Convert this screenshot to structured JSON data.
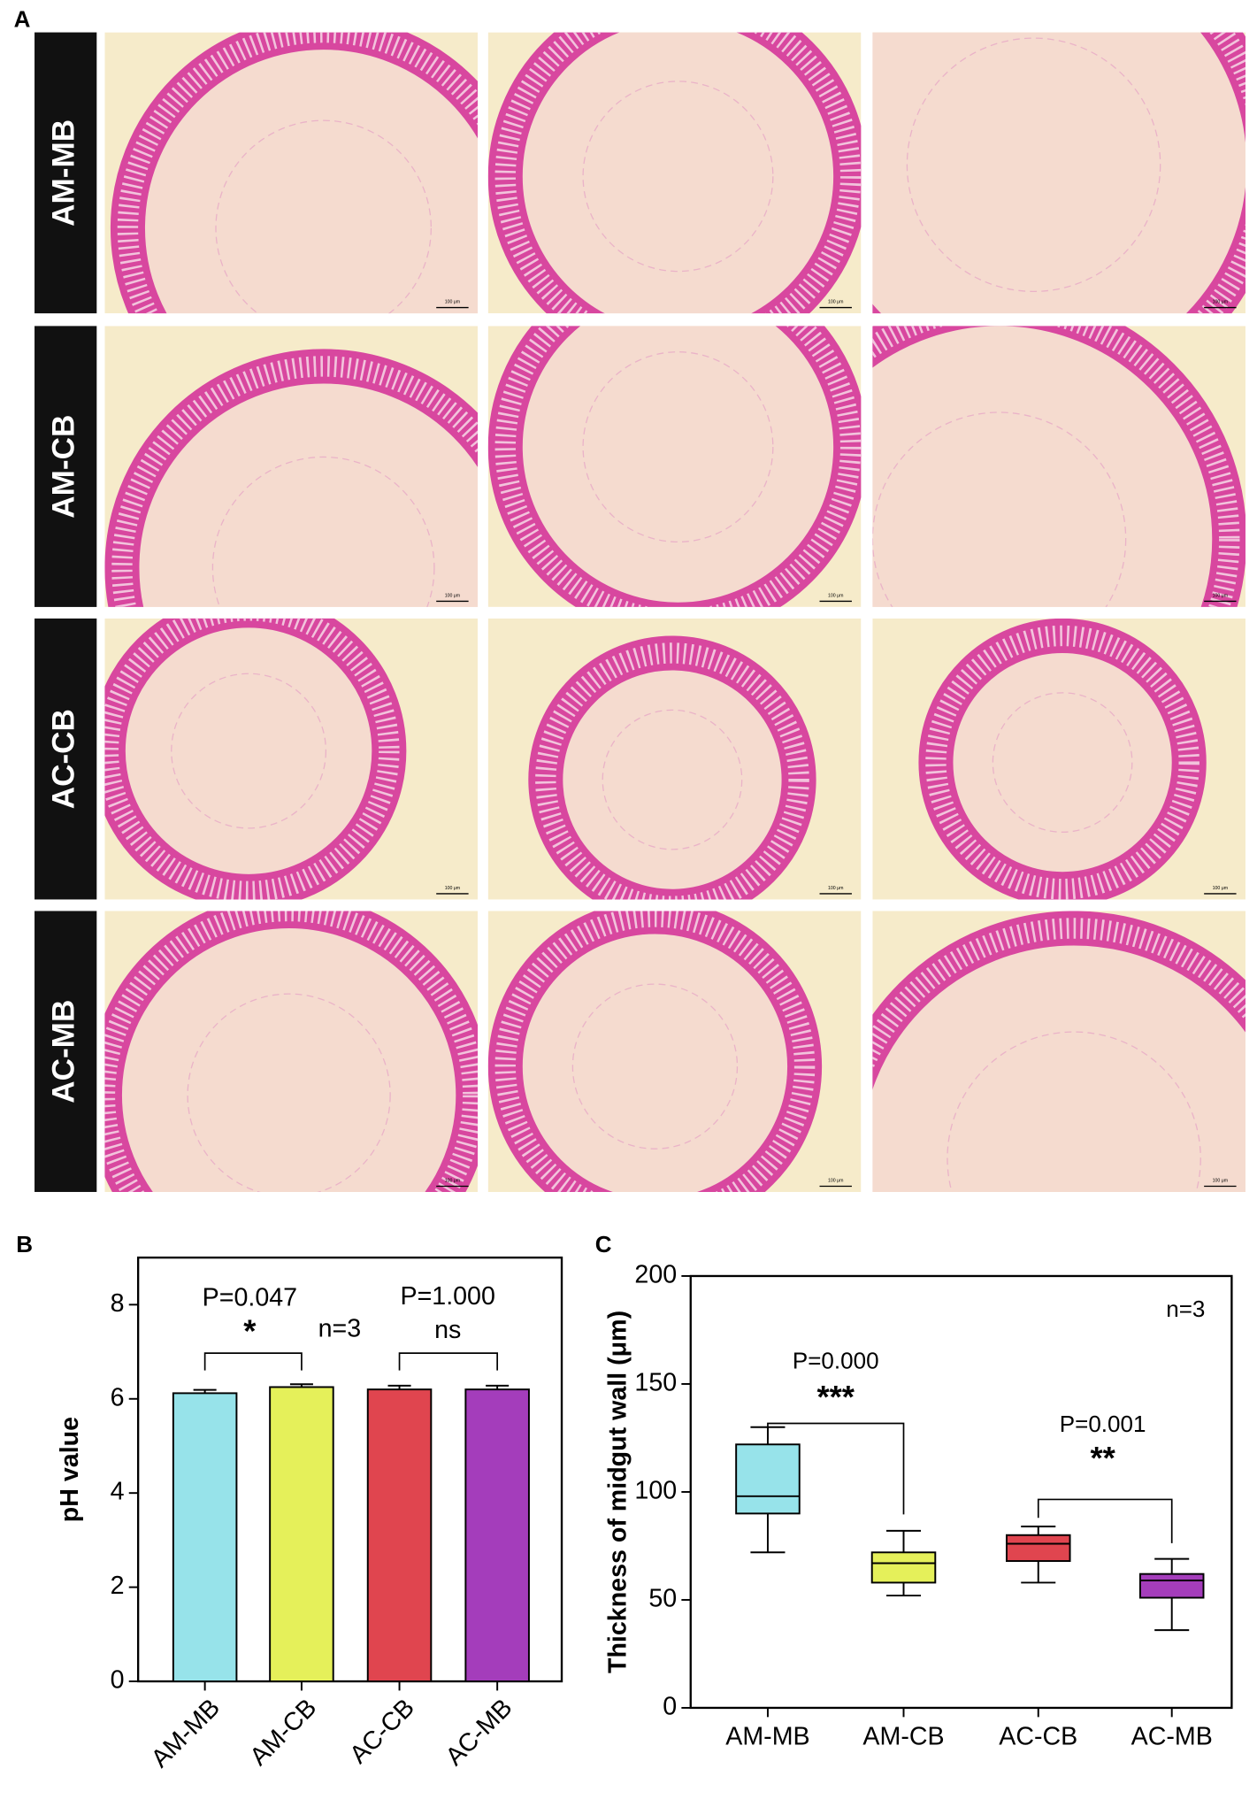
{
  "panel_a": {
    "label": "A",
    "rows": [
      "AM-MB",
      "AM-CB",
      "AC-CB",
      "AC-MB"
    ],
    "scale_bar": "100 μm"
  },
  "chart_data": [
    {
      "type": "bar",
      "panel": "B",
      "ylabel": "pH value",
      "categories": [
        "AM-MB",
        "AM-CB",
        "AC-CB",
        "AC-MB"
      ],
      "values": [
        6.12,
        6.25,
        6.2,
        6.2
      ],
      "errors": [
        0.07,
        0.06,
        0.08,
        0.08
      ],
      "colors": [
        "#97e3ea",
        "#e5f05a",
        "#e0454f",
        "#a43dbb"
      ],
      "ylim": [
        0,
        9
      ],
      "yticks": [
        0,
        2,
        4,
        6,
        8
      ],
      "annotations": [
        "P=0.047",
        "*",
        "n=3",
        "P=1.000",
        "ns"
      ]
    },
    {
      "type": "box",
      "panel": "C",
      "ylabel": "Thickness of midgut wall (μm)",
      "categories": [
        "AM-MB",
        "AM-CB",
        "AC-CB",
        "AC-MB"
      ],
      "min": [
        72,
        52,
        58,
        36
      ],
      "q1": [
        90,
        58,
        68,
        51
      ],
      "median": [
        98,
        67,
        76,
        59
      ],
      "q3": [
        122,
        72,
        80,
        62
      ],
      "max": [
        130,
        82,
        84,
        69
      ],
      "colors": [
        "#97e3ea",
        "#e5f05a",
        "#e0454f",
        "#a43dbb"
      ],
      "ylim": [
        0,
        200
      ],
      "yticks": [
        0,
        50,
        100,
        150,
        200
      ],
      "annotations": [
        "n=3",
        "P=0.000",
        "***",
        "P=0.001",
        "**"
      ]
    }
  ]
}
